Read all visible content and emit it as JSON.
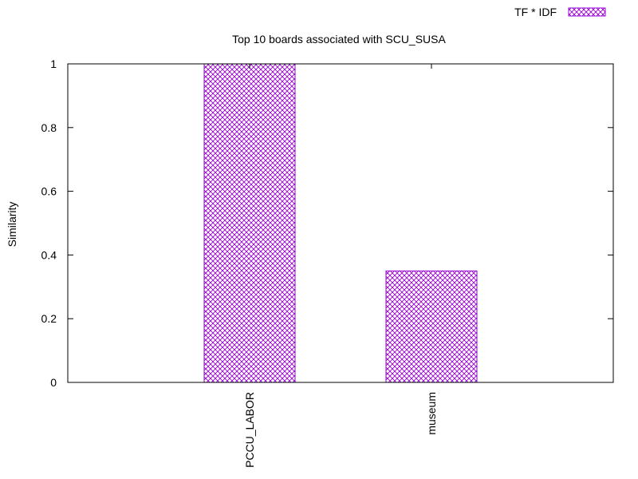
{
  "chart_data": {
    "type": "bar",
    "title": "Top 10 boards associated with SCU_SUSA",
    "xlabel": "",
    "ylabel": "Similarity",
    "categories": [
      "PCCU_LABOR",
      "museum"
    ],
    "series": [
      {
        "name": "TF * IDF",
        "values": [
          1.0,
          0.35
        ]
      }
    ],
    "ylim": [
      0,
      1
    ],
    "yticks": [
      "0",
      "0.2",
      "0.4",
      "0.6",
      "0.8",
      "1"
    ],
    "grid": false,
    "legend_position": "top-right",
    "bar_pattern": "crosshatch",
    "bar_color": "#9400d3"
  }
}
